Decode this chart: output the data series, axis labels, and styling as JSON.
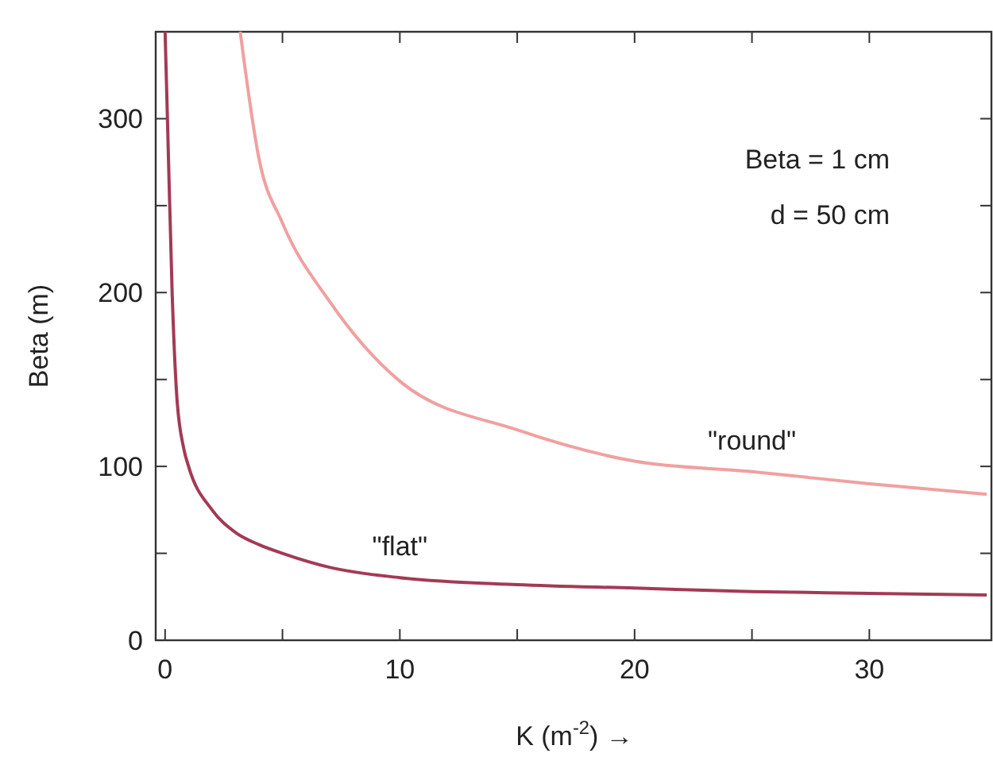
{
  "chart_data": {
    "type": "line",
    "xlabel": "K (m$^{-2}$) →",
    "ylabel": "Beta (m)",
    "xlim": [
      -0.4,
      35.2
    ],
    "ylim": [
      0,
      350
    ],
    "xticks": [
      0,
      {
        "value": 5,
        "label": null
      },
      10,
      {
        "value": 15,
        "label": null
      },
      20,
      {
        "value": 25,
        "label": null
      },
      30
    ],
    "yticks": [
      0,
      {
        "value": 50,
        "label": null
      },
      100,
      {
        "value": 150,
        "label": null
      },
      200,
      {
        "value": 250,
        "label": null
      },
      300
    ],
    "grid": false,
    "marker": "none",
    "line_style": "solid",
    "annotations": [
      {
        "text": "Beta = 1 cm"
      },
      {
        "text": "d = 50 cm"
      }
    ],
    "series": [
      {
        "name": "\"flat\"",
        "color": "#a33a55",
        "x": [
          0,
          0.1,
          0.3,
          0.5,
          0.8,
          1,
          2,
          3,
          4,
          5,
          7,
          10,
          15,
          20,
          25,
          30,
          35
        ],
        "values": [
          350,
          300,
          200,
          140,
          110,
          100,
          75,
          62,
          55,
          50,
          42,
          36,
          32,
          30,
          28,
          27,
          26
        ]
      },
      {
        "name": "\"round\"",
        "color": "#f0a0a0",
        "x": [
          3.2,
          4,
          5,
          7,
          10,
          15,
          20,
          25,
          30,
          35
        ],
        "values": [
          350,
          277,
          240,
          195,
          149,
          121,
          103,
          97,
          90,
          84
        ]
      }
    ]
  }
}
